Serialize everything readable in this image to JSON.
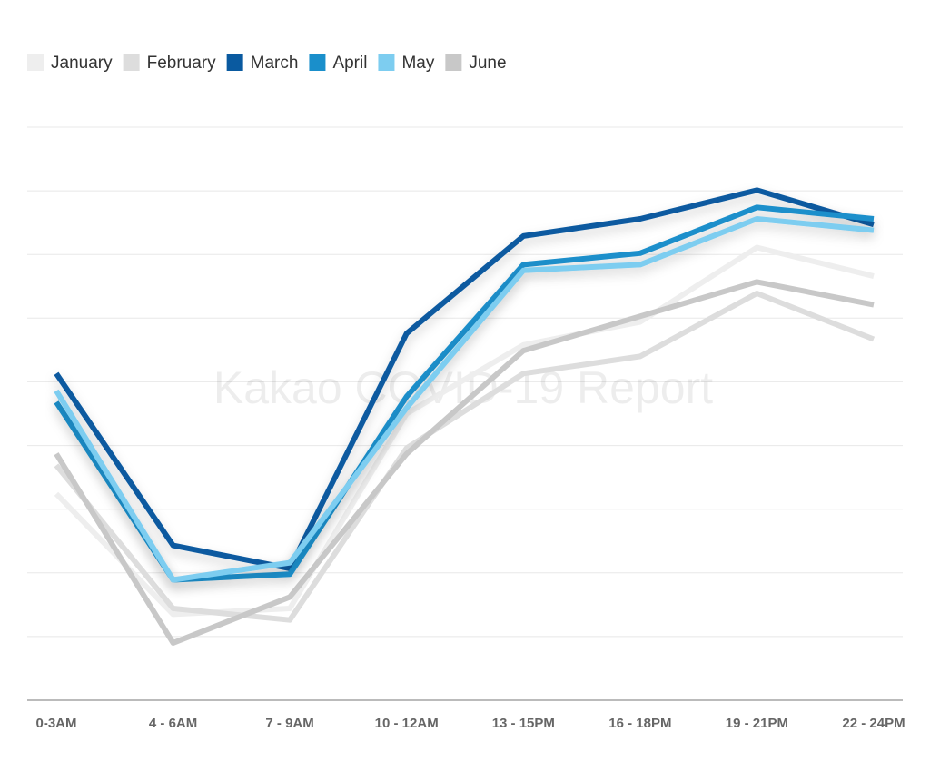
{
  "chart_data": {
    "type": "line",
    "title": "",
    "xlabel": "",
    "ylabel": "",
    "watermark": "Kakao COVID-19 Report",
    "ylim": [
      0,
      100
    ],
    "grid": true,
    "legend_position": "top-left",
    "categories": [
      "0-3AM",
      "4 - 6AM",
      "7 - 9AM",
      "10 - 12AM",
      "13 - 15PM",
      "16 - 18PM",
      "19 - 21PM",
      "22 - 24PM"
    ],
    "series": [
      {
        "name": "January",
        "color": "#eeeeee",
        "values": [
          36,
          15,
          16,
          50,
          62,
          66,
          79,
          74
        ]
      },
      {
        "name": "February",
        "color": "#dddddd",
        "values": [
          41,
          16,
          14,
          44,
          57,
          60,
          71,
          63
        ]
      },
      {
        "name": "March",
        "color": "#0a5aa0",
        "values": [
          57,
          27,
          23,
          64,
          81,
          84,
          89,
          83
        ]
      },
      {
        "name": "April",
        "color": "#1a8fcb",
        "values": [
          52,
          21,
          22,
          53,
          76,
          78,
          86,
          84
        ]
      },
      {
        "name": "May",
        "color": "#7dcdf0",
        "values": [
          54,
          21,
          24,
          51,
          75,
          76,
          84,
          82
        ]
      },
      {
        "name": "June",
        "color": "#c8c8c8",
        "values": [
          43,
          10,
          18,
          43,
          61,
          67,
          73,
          69
        ]
      }
    ]
  }
}
